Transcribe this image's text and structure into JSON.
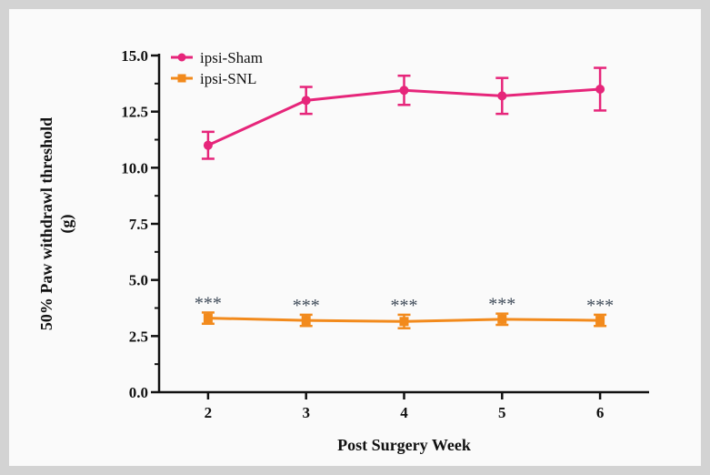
{
  "chart_data": {
    "type": "line",
    "title": "",
    "xlabel": "Post Surgery Week",
    "ylabel_lines": [
      "50% Paw withdrawl threshold",
      "(g)"
    ],
    "x": [
      2,
      3,
      4,
      5,
      6
    ],
    "x_tick_labels": [
      "2",
      "3",
      "4",
      "5",
      "6"
    ],
    "xlim": [
      1.5,
      6.5
    ],
    "ylim": [
      0,
      15
    ],
    "y_ticks": [
      0,
      2.5,
      5,
      7.5,
      10,
      12.5,
      15
    ],
    "y_tick_labels": [
      "0.0",
      "2.5",
      "5.0",
      "7.5",
      "10.0",
      "12.5",
      "15.0"
    ],
    "legend_position": "top-left",
    "series": [
      {
        "name": "ipsi-Sham",
        "color": "#e6257a",
        "marker": "circle",
        "values": [
          11.0,
          13.0,
          13.45,
          13.2,
          13.5
        ],
        "error": [
          0.6,
          0.6,
          0.65,
          0.8,
          0.95
        ]
      },
      {
        "name": "ipsi-SNL",
        "color": "#f28a1c",
        "marker": "square",
        "values": [
          3.3,
          3.2,
          3.15,
          3.25,
          3.2
        ],
        "error": [
          0.25,
          0.25,
          0.3,
          0.25,
          0.25
        ]
      }
    ],
    "annotations": [
      "***",
      "***",
      "***",
      "***",
      "***"
    ]
  }
}
